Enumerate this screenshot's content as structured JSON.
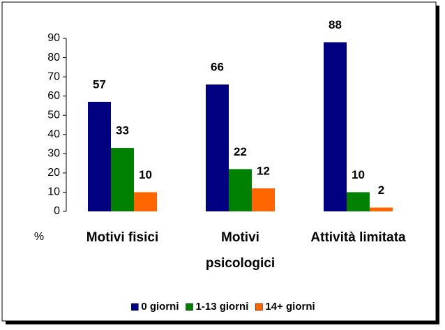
{
  "chart_data": {
    "type": "bar",
    "categories": [
      "Motivi fisici",
      "Motivi psicologici",
      "Attività limitata"
    ],
    "series": [
      {
        "name": "0 giorni",
        "color": "#000080",
        "values": [
          57,
          66,
          88
        ]
      },
      {
        "name": "1-13 giorni",
        "color": "#008000",
        "values": [
          33,
          22,
          10
        ]
      },
      {
        "name": "14+ giorni",
        "color": "#ff6600",
        "values": [
          10,
          12,
          2
        ]
      }
    ],
    "ylabel": "%",
    "ylim": [
      0,
      90
    ],
    "yticks": [
      0,
      10,
      20,
      30,
      40,
      50,
      60,
      70,
      80,
      90
    ],
    "legend": "bottom"
  }
}
